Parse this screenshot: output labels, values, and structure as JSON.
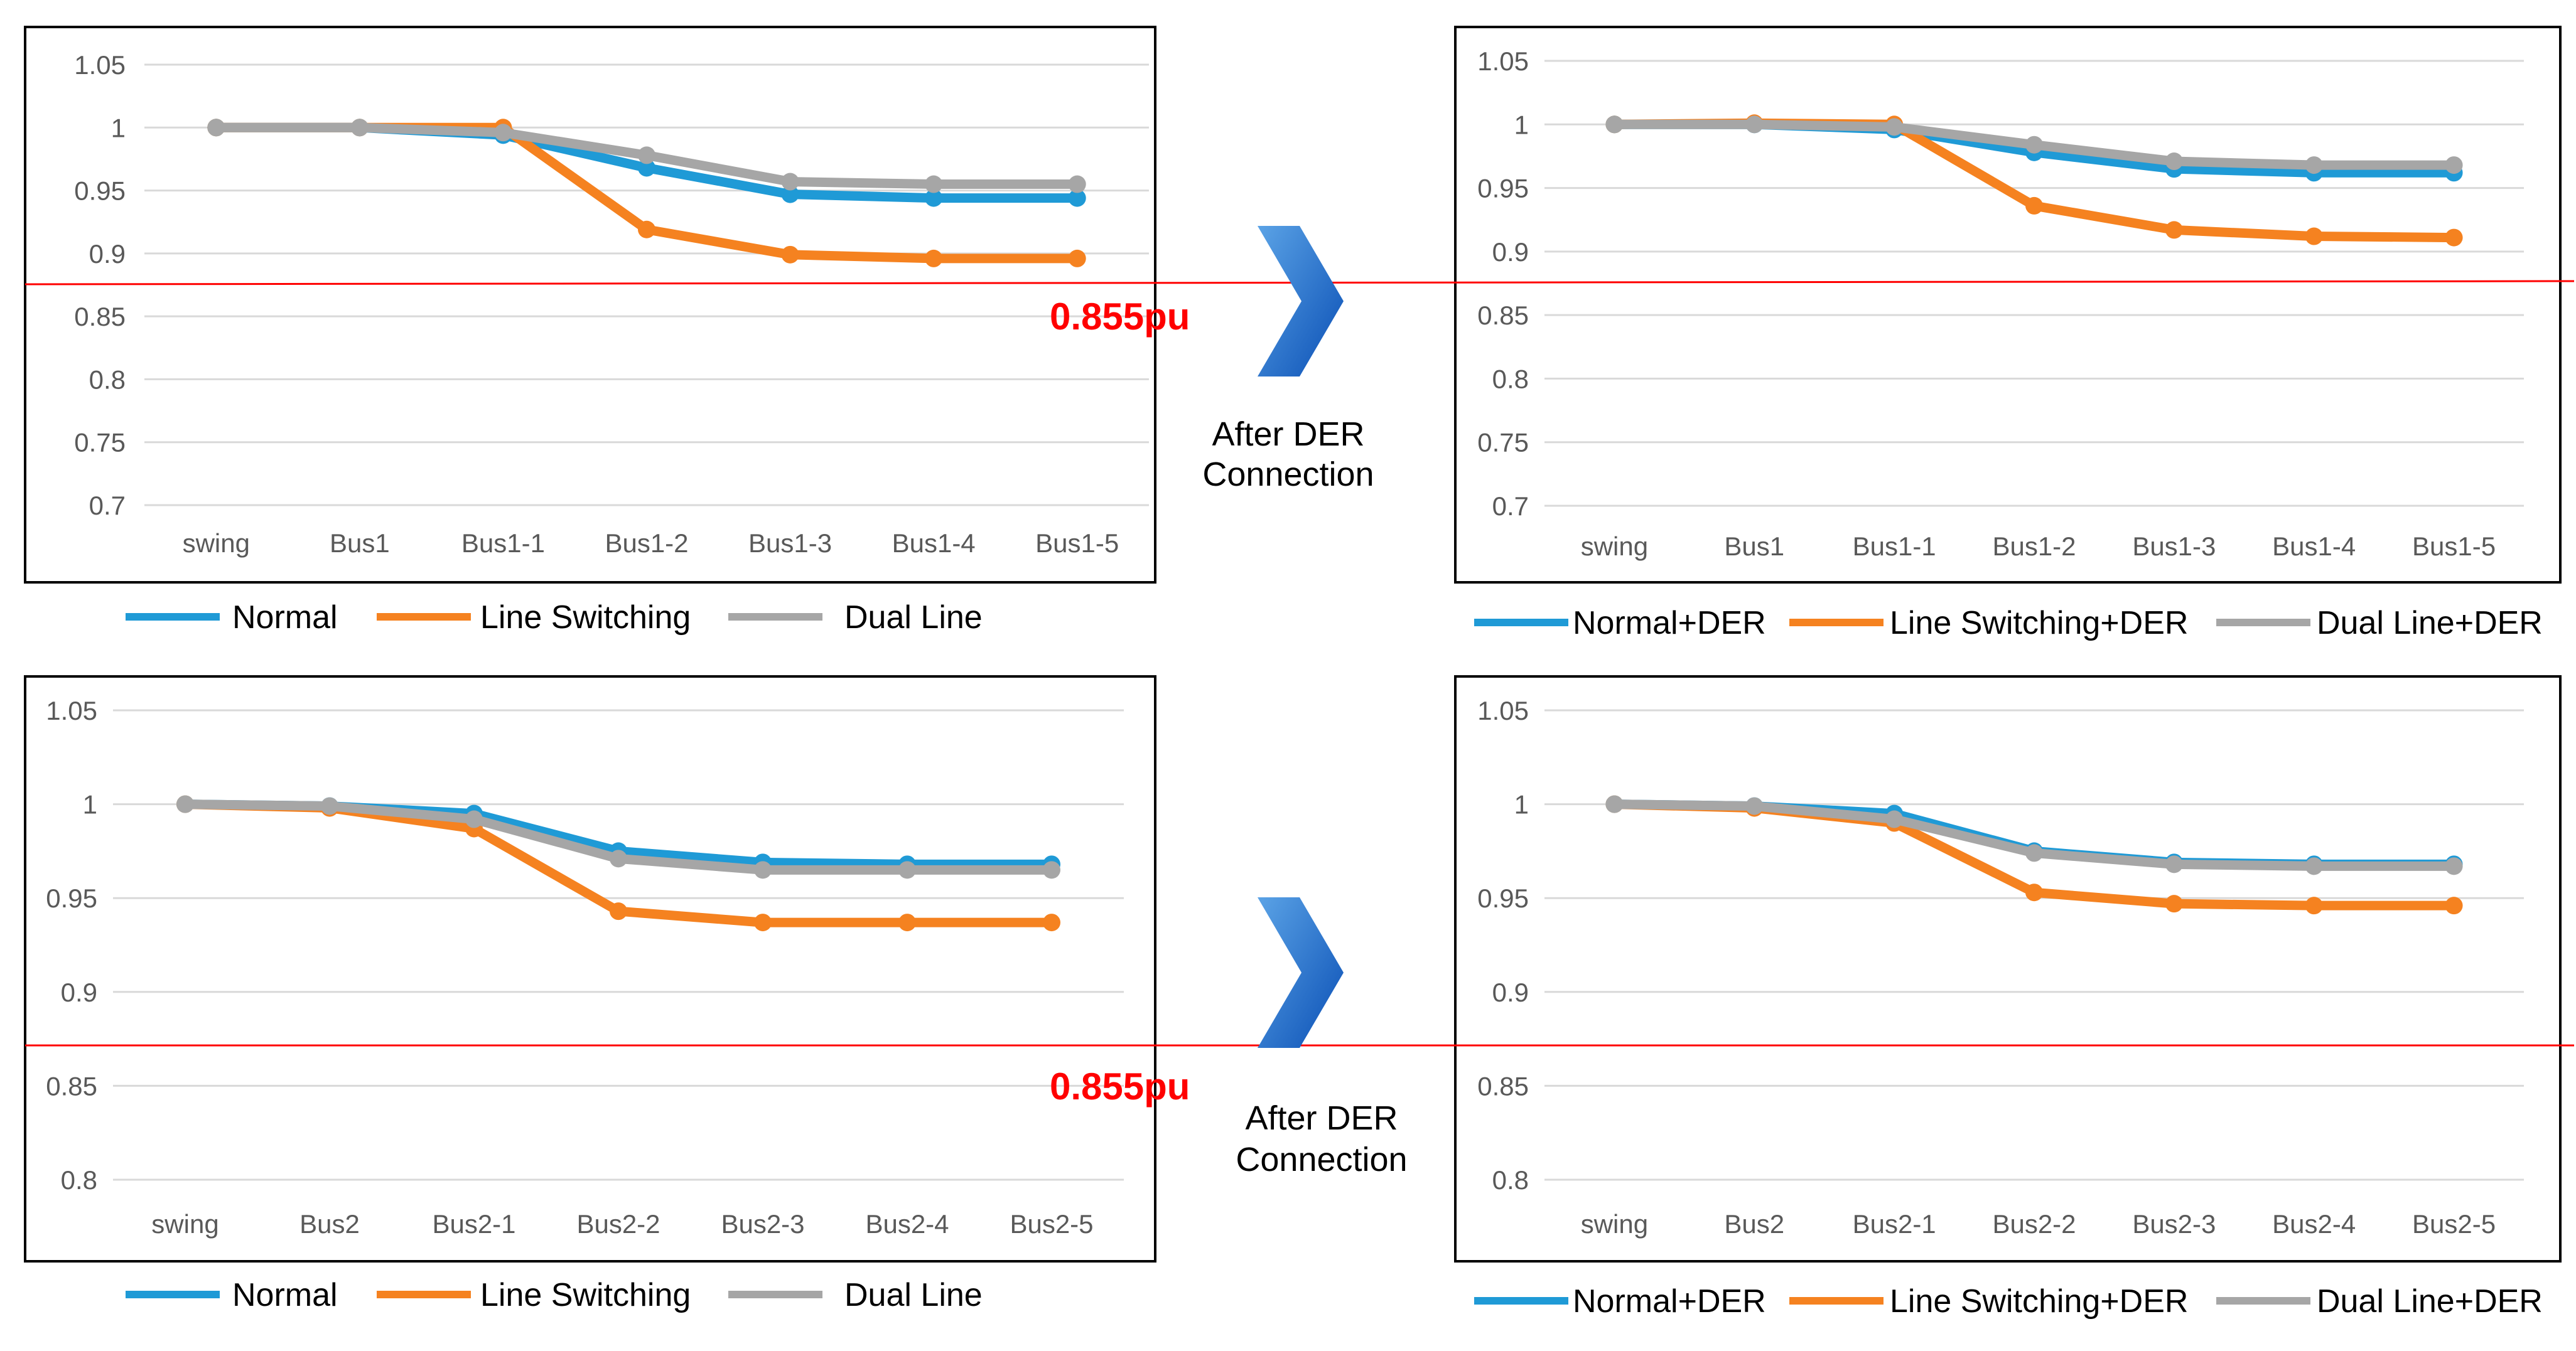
{
  "threshold_label": "0.855pu",
  "after_label_line1": "After DER",
  "after_label_line2": "Connection",
  "colors": {
    "normal": "#1f9ad6",
    "line_switching": "#f58220",
    "dual_line": "#a6a6a6",
    "threshold": "#ff0000",
    "arrow_light": "#5ba3e6",
    "arrow_dark": "#0a4fb5"
  },
  "chart_data": [
    {
      "type": "line",
      "id": "top-left",
      "categories": [
        "swing",
        "Bus1",
        "Bus1-1",
        "Bus1-2",
        "Bus1-3",
        "Bus1-4",
        "Bus1-5"
      ],
      "y_ticks": [
        "1.05",
        "1",
        "0.95",
        "0.9",
        "0.85",
        "0.8",
        "0.75",
        "0.7"
      ],
      "ylim": [
        0.7,
        1.05
      ],
      "series": [
        {
          "name": "Normal",
          "color_key": "normal",
          "values": [
            1.0,
            1.0,
            0.994,
            0.968,
            0.947,
            0.944,
            0.944
          ]
        },
        {
          "name": "Line Switching",
          "color_key": "line_switching",
          "values": [
            1.0,
            1.0,
            1.0,
            0.919,
            0.899,
            0.896,
            0.896
          ]
        },
        {
          "name": "Dual Line",
          "color_key": "dual_line",
          "values": [
            1.0,
            1.0,
            0.996,
            0.978,
            0.957,
            0.955,
            0.955
          ]
        }
      ]
    },
    {
      "type": "line",
      "id": "top-right",
      "categories": [
        "swing",
        "Bus1",
        "Bus1-1",
        "Bus1-2",
        "Bus1-3",
        "Bus1-4",
        "Bus1-5"
      ],
      "y_ticks": [
        "1.05",
        "1",
        "0.95",
        "0.9",
        "0.85",
        "0.8",
        "0.75",
        "0.7"
      ],
      "ylim": [
        0.7,
        1.05
      ],
      "series": [
        {
          "name": "Normal+DER",
          "color_key": "normal",
          "values": [
            1.0,
            1.0,
            0.996,
            0.978,
            0.965,
            0.962,
            0.962
          ]
        },
        {
          "name": "Line Switching+DER",
          "color_key": "line_switching",
          "values": [
            1.0,
            1.001,
            1.0,
            0.936,
            0.917,
            0.912,
            0.911
          ]
        },
        {
          "name": "Dual Line+DER",
          "color_key": "dual_line",
          "values": [
            1.0,
            1.0,
            0.998,
            0.984,
            0.971,
            0.968,
            0.968
          ]
        }
      ]
    },
    {
      "type": "line",
      "id": "bottom-left",
      "categories": [
        "swing",
        "Bus2",
        "Bus2-1",
        "Bus2-2",
        "Bus2-3",
        "Bus2-4",
        "Bus2-5"
      ],
      "y_ticks": [
        "1.05",
        "1",
        "0.95",
        "0.9",
        "0.85",
        "0.8"
      ],
      "ylim": [
        0.8,
        1.05
      ],
      "series": [
        {
          "name": "Normal",
          "color_key": "normal",
          "values": [
            1.0,
            0.999,
            0.995,
            0.975,
            0.969,
            0.968,
            0.968
          ]
        },
        {
          "name": "Line Switching",
          "color_key": "line_switching",
          "values": [
            1.0,
            0.998,
            0.987,
            0.943,
            0.937,
            0.937,
            0.937
          ]
        },
        {
          "name": "Dual Line",
          "color_key": "dual_line",
          "values": [
            1.0,
            0.999,
            0.992,
            0.971,
            0.965,
            0.965,
            0.965
          ]
        }
      ]
    },
    {
      "type": "line",
      "id": "bottom-right",
      "categories": [
        "swing",
        "Bus2",
        "Bus2-1",
        "Bus2-2",
        "Bus2-3",
        "Bus2-4",
        "Bus2-5"
      ],
      "y_ticks": [
        "1.05",
        "1",
        "0.95",
        "0.9",
        "0.85",
        "0.8"
      ],
      "ylim": [
        0.8,
        1.05
      ],
      "series": [
        {
          "name": "Normal+DER",
          "color_key": "normal",
          "values": [
            1.0,
            0.999,
            0.995,
            0.975,
            0.969,
            0.968,
            0.968
          ]
        },
        {
          "name": "Line Switching+DER",
          "color_key": "line_switching",
          "values": [
            1.0,
            0.998,
            0.99,
            0.953,
            0.947,
            0.946,
            0.946
          ]
        },
        {
          "name": "Dual Line+DER",
          "color_key": "dual_line",
          "values": [
            1.0,
            0.999,
            0.992,
            0.974,
            0.968,
            0.967,
            0.967
          ]
        }
      ]
    }
  ]
}
